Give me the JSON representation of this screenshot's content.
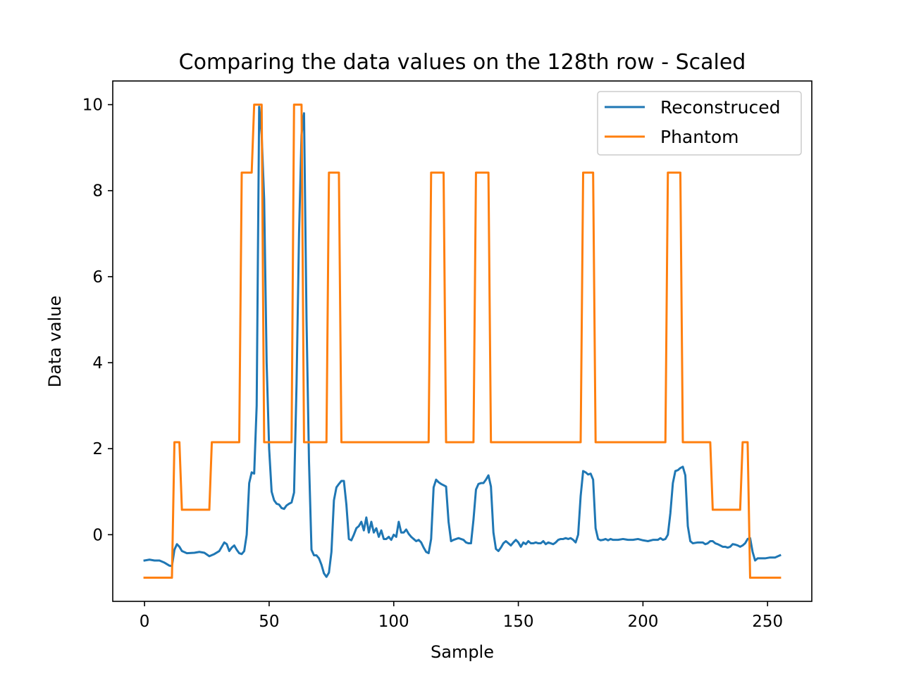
{
  "chart_data": {
    "type": "line",
    "title": "Comparing the data values on the 128th row - Scaled",
    "xlabel": "Sample",
    "ylabel": "Data value",
    "xlim": [
      -12.75,
      267.75
    ],
    "ylim": [
      -1.55,
      10.55
    ],
    "xticks": [
      0,
      50,
      100,
      150,
      200,
      250
    ],
    "yticks": [
      0,
      2,
      4,
      6,
      8,
      10
    ],
    "grid": false,
    "legend": {
      "placement": "upper-right",
      "entries": [
        "Reconstruced",
        "Phantom"
      ]
    },
    "series": [
      {
        "name": "Reconstruced",
        "color": "#1f77b4",
        "points": [
          [
            0,
            -0.6
          ],
          [
            2,
            -0.58
          ],
          [
            4,
            -0.6
          ],
          [
            6,
            -0.6
          ],
          [
            8,
            -0.65
          ],
          [
            10,
            -0.72
          ],
          [
            11,
            -0.73
          ],
          [
            12,
            -0.35
          ],
          [
            13,
            -0.22
          ],
          [
            14,
            -0.28
          ],
          [
            15,
            -0.38
          ],
          [
            17,
            -0.43
          ],
          [
            20,
            -0.42
          ],
          [
            22,
            -0.4
          ],
          [
            24,
            -0.42
          ],
          [
            26,
            -0.5
          ],
          [
            28,
            -0.45
          ],
          [
            30,
            -0.38
          ],
          [
            32,
            -0.18
          ],
          [
            33,
            -0.22
          ],
          [
            34,
            -0.38
          ],
          [
            35,
            -0.3
          ],
          [
            36,
            -0.25
          ],
          [
            37,
            -0.35
          ],
          [
            38,
            -0.43
          ],
          [
            39,
            -0.45
          ],
          [
            40,
            -0.38
          ],
          [
            41,
            0.0
          ],
          [
            42,
            1.2
          ],
          [
            43,
            1.45
          ],
          [
            44,
            1.42
          ],
          [
            45,
            3.0
          ],
          [
            46,
            9.95
          ],
          [
            47,
            9.3
          ],
          [
            48,
            7.8
          ],
          [
            49,
            4.0
          ],
          [
            50,
            2.0
          ],
          [
            51,
            1.0
          ],
          [
            52,
            0.8
          ],
          [
            53,
            0.72
          ],
          [
            54,
            0.7
          ],
          [
            55,
            0.62
          ],
          [
            56,
            0.6
          ],
          [
            57,
            0.68
          ],
          [
            58,
            0.72
          ],
          [
            59,
            0.75
          ],
          [
            60,
            0.98
          ],
          [
            61,
            3.5
          ],
          [
            62,
            7.0
          ],
          [
            63,
            9.3
          ],
          [
            64,
            9.8
          ],
          [
            65,
            5.0
          ],
          [
            66,
            1.7
          ],
          [
            67,
            -0.35
          ],
          [
            68,
            -0.48
          ],
          [
            69,
            -0.48
          ],
          [
            70,
            -0.55
          ],
          [
            71,
            -0.7
          ],
          [
            72,
            -0.9
          ],
          [
            73,
            -0.98
          ],
          [
            74,
            -0.88
          ],
          [
            75,
            -0.4
          ],
          [
            76,
            0.8
          ],
          [
            77,
            1.1
          ],
          [
            78,
            1.18
          ],
          [
            79,
            1.25
          ],
          [
            80,
            1.25
          ],
          [
            81,
            0.7
          ],
          [
            82,
            -0.1
          ],
          [
            83,
            -0.13
          ],
          [
            84,
            0.0
          ],
          [
            85,
            0.15
          ],
          [
            86,
            0.2
          ],
          [
            87,
            0.3
          ],
          [
            88,
            0.1
          ],
          [
            89,
            0.4
          ],
          [
            90,
            0.05
          ],
          [
            91,
            0.3
          ],
          [
            92,
            0.05
          ],
          [
            93,
            0.15
          ],
          [
            94,
            -0.05
          ],
          [
            95,
            0.1
          ],
          [
            96,
            -0.1
          ],
          [
            97,
            -0.1
          ],
          [
            98,
            -0.05
          ],
          [
            99,
            -0.12
          ],
          [
            100,
            0.0
          ],
          [
            101,
            -0.05
          ],
          [
            102,
            0.3
          ],
          [
            103,
            0.05
          ],
          [
            104,
            0.05
          ],
          [
            105,
            0.12
          ],
          [
            106,
            0.02
          ],
          [
            107,
            -0.05
          ],
          [
            108,
            -0.1
          ],
          [
            109,
            -0.15
          ],
          [
            110,
            -0.12
          ],
          [
            111,
            -0.18
          ],
          [
            112,
            -0.3
          ],
          [
            113,
            -0.4
          ],
          [
            114,
            -0.43
          ],
          [
            115,
            -0.1
          ],
          [
            116,
            1.1
          ],
          [
            117,
            1.28
          ],
          [
            118,
            1.22
          ],
          [
            119,
            1.18
          ],
          [
            120,
            1.15
          ],
          [
            121,
            1.12
          ],
          [
            122,
            0.3
          ],
          [
            123,
            -0.15
          ],
          [
            124,
            -0.12
          ],
          [
            125,
            -0.1
          ],
          [
            126,
            -0.08
          ],
          [
            127,
            -0.1
          ],
          [
            128,
            -0.12
          ],
          [
            129,
            -0.18
          ],
          [
            130,
            -0.2
          ],
          [
            131,
            -0.2
          ],
          [
            132,
            0.35
          ],
          [
            133,
            1.05
          ],
          [
            134,
            1.18
          ],
          [
            135,
            1.2
          ],
          [
            136,
            1.2
          ],
          [
            137,
            1.28
          ],
          [
            138,
            1.38
          ],
          [
            139,
            1.12
          ],
          [
            140,
            0.05
          ],
          [
            141,
            -0.33
          ],
          [
            142,
            -0.38
          ],
          [
            143,
            -0.3
          ],
          [
            144,
            -0.2
          ],
          [
            145,
            -0.15
          ],
          [
            146,
            -0.2
          ],
          [
            147,
            -0.25
          ],
          [
            148,
            -0.18
          ],
          [
            149,
            -0.12
          ],
          [
            150,
            -0.18
          ],
          [
            151,
            -0.28
          ],
          [
            152,
            -0.18
          ],
          [
            153,
            -0.22
          ],
          [
            154,
            -0.15
          ],
          [
            155,
            -0.2
          ],
          [
            156,
            -0.2
          ],
          [
            157,
            -0.18
          ],
          [
            158,
            -0.2
          ],
          [
            159,
            -0.2
          ],
          [
            160,
            -0.15
          ],
          [
            161,
            -0.22
          ],
          [
            162,
            -0.18
          ],
          [
            163,
            -0.2
          ],
          [
            164,
            -0.22
          ],
          [
            165,
            -0.18
          ],
          [
            166,
            -0.12
          ],
          [
            167,
            -0.1
          ],
          [
            168,
            -0.1
          ],
          [
            169,
            -0.08
          ],
          [
            170,
            -0.1
          ],
          [
            171,
            -0.08
          ],
          [
            172,
            -0.12
          ],
          [
            173,
            -0.18
          ],
          [
            174,
            0.0
          ],
          [
            175,
            0.9
          ],
          [
            176,
            1.48
          ],
          [
            177,
            1.45
          ],
          [
            178,
            1.4
          ],
          [
            179,
            1.42
          ],
          [
            180,
            1.28
          ],
          [
            181,
            0.15
          ],
          [
            182,
            -0.1
          ],
          [
            183,
            -0.13
          ],
          [
            184,
            -0.12
          ],
          [
            185,
            -0.1
          ],
          [
            186,
            -0.13
          ],
          [
            187,
            -0.1
          ],
          [
            188,
            -0.12
          ],
          [
            190,
            -0.12
          ],
          [
            192,
            -0.1
          ],
          [
            194,
            -0.12
          ],
          [
            196,
            -0.12
          ],
          [
            198,
            -0.1
          ],
          [
            200,
            -0.13
          ],
          [
            202,
            -0.15
          ],
          [
            204,
            -0.12
          ],
          [
            206,
            -0.12
          ],
          [
            207,
            -0.08
          ],
          [
            208,
            -0.12
          ],
          [
            209,
            -0.1
          ],
          [
            210,
            0.0
          ],
          [
            211,
            0.5
          ],
          [
            212,
            1.2
          ],
          [
            213,
            1.48
          ],
          [
            214,
            1.5
          ],
          [
            215,
            1.55
          ],
          [
            216,
            1.58
          ],
          [
            217,
            1.38
          ],
          [
            218,
            0.2
          ],
          [
            219,
            -0.15
          ],
          [
            220,
            -0.2
          ],
          [
            222,
            -0.18
          ],
          [
            224,
            -0.18
          ],
          [
            225,
            -0.22
          ],
          [
            226,
            -0.2
          ],
          [
            227,
            -0.15
          ],
          [
            228,
            -0.15
          ],
          [
            229,
            -0.2
          ],
          [
            230,
            -0.22
          ],
          [
            231,
            -0.25
          ],
          [
            232,
            -0.28
          ],
          [
            233,
            -0.28
          ],
          [
            234,
            -0.3
          ],
          [
            235,
            -0.28
          ],
          [
            236,
            -0.22
          ],
          [
            237,
            -0.23
          ],
          [
            238,
            -0.25
          ],
          [
            239,
            -0.28
          ],
          [
            240,
            -0.25
          ],
          [
            241,
            -0.2
          ],
          [
            242,
            -0.1
          ],
          [
            243,
            -0.08
          ],
          [
            244,
            -0.4
          ],
          [
            245,
            -0.6
          ],
          [
            246,
            -0.55
          ],
          [
            247,
            -0.55
          ],
          [
            249,
            -0.55
          ],
          [
            251,
            -0.53
          ],
          [
            253,
            -0.53
          ],
          [
            255,
            -0.48
          ]
        ]
      },
      {
        "name": "Phantom",
        "color": "#ff7f0e",
        "points": [
          [
            0,
            -1.0
          ],
          [
            11,
            -1.0
          ],
          [
            12,
            2.15
          ],
          [
            14,
            2.15
          ],
          [
            15,
            0.58
          ],
          [
            26,
            0.58
          ],
          [
            27,
            2.15
          ],
          [
            38,
            2.15
          ],
          [
            39,
            8.42
          ],
          [
            43,
            8.42
          ],
          [
            44,
            10.0
          ],
          [
            47,
            10.0
          ],
          [
            48,
            2.15
          ],
          [
            59,
            2.15
          ],
          [
            60,
            10.0
          ],
          [
            63,
            10.0
          ],
          [
            64,
            2.15
          ],
          [
            73,
            2.15
          ],
          [
            74,
            8.42
          ],
          [
            78,
            8.42
          ],
          [
            79,
            2.15
          ],
          [
            114,
            2.15
          ],
          [
            115,
            8.42
          ],
          [
            120,
            8.42
          ],
          [
            121,
            2.15
          ],
          [
            132,
            2.15
          ],
          [
            133,
            8.42
          ],
          [
            138,
            8.42
          ],
          [
            139,
            2.15
          ],
          [
            175,
            2.15
          ],
          [
            176,
            8.42
          ],
          [
            180,
            8.42
          ],
          [
            181,
            2.15
          ],
          [
            209,
            2.15
          ],
          [
            210,
            8.42
          ],
          [
            215,
            8.42
          ],
          [
            216,
            2.15
          ],
          [
            227,
            2.15
          ],
          [
            228,
            0.58
          ],
          [
            239,
            0.58
          ],
          [
            240,
            2.15
          ],
          [
            242,
            2.15
          ],
          [
            243,
            -1.0
          ],
          [
            255,
            -1.0
          ]
        ]
      }
    ]
  }
}
